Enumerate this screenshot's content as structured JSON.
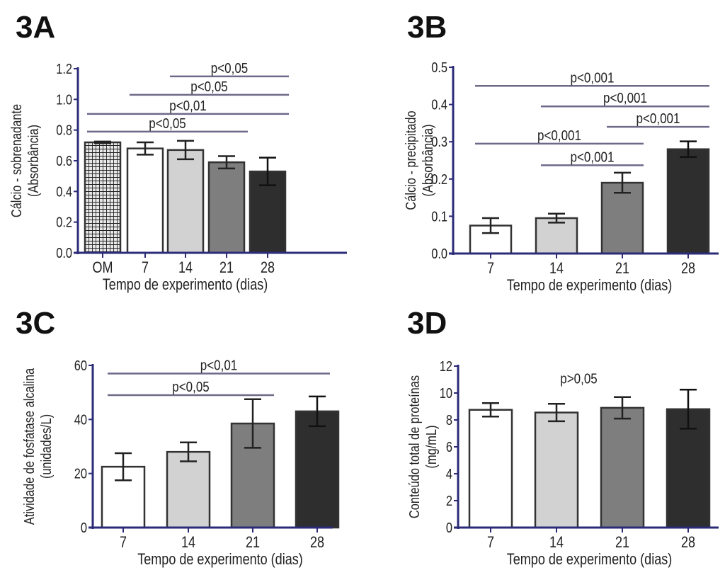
{
  "colors": {
    "axis": "#2b2b78",
    "sig_line": "#6c6a88",
    "bar_fills": [
      "#ffffff",
      "#d2d2d2",
      "#7e7e7e",
      "#2e2e2e"
    ],
    "om_fill": "checkered"
  },
  "chart_data": [
    {
      "panel": "3A",
      "type": "bar",
      "ylabel": [
        "Cálcio - sobrenadante",
        "(Absorbância)"
      ],
      "xlabel": "Tempo de experimento (dias)",
      "categories": [
        "OM",
        "7",
        "14",
        "21",
        "28"
      ],
      "values": [
        0.72,
        0.68,
        0.67,
        0.59,
        0.53
      ],
      "errors": [
        0.005,
        0.04,
        0.06,
        0.04,
        0.09
      ],
      "ylim": [
        0,
        1.2
      ],
      "yticks": [
        "0.0",
        "0.2",
        "0.4",
        "0.6",
        "0.8",
        "1.0",
        "1.2"
      ],
      "significance": [
        {
          "from": "OM",
          "to": "21",
          "y": 0.79,
          "label": "p<0,05"
        },
        {
          "from": "OM",
          "to": "28",
          "y": 0.905,
          "label": "p<0,01"
        },
        {
          "from": "7",
          "to": "28",
          "y": 1.03,
          "label": "p<0,05"
        },
        {
          "from": "14",
          "to": "28",
          "y": 1.15,
          "label": "p<0,05"
        }
      ]
    },
    {
      "panel": "3B",
      "type": "bar",
      "ylabel": [
        "Cálcio - precipitado",
        "(Absorbância)"
      ],
      "xlabel": "Tempo de experimento (dias)",
      "categories": [
        "7",
        "14",
        "21",
        "28"
      ],
      "values": [
        0.075,
        0.095,
        0.19,
        0.28
      ],
      "errors": [
        0.02,
        0.012,
        0.027,
        0.021
      ],
      "ylim": [
        0,
        0.5
      ],
      "yticks": [
        "0.0",
        "0.1",
        "0.2",
        "0.3",
        "0.4",
        "0.5"
      ],
      "significance": [
        {
          "from": "14",
          "to": "21",
          "y": 0.237,
          "label": "p<0,001"
        },
        {
          "from": "7",
          "to": "21",
          "y": 0.295,
          "label": "p<0,001"
        },
        {
          "from": "21",
          "to": "28",
          "y": 0.34,
          "label": "p<0,001"
        },
        {
          "from": "14",
          "to": "28",
          "y": 0.395,
          "label": "p<0,001"
        },
        {
          "from": "7",
          "to": "28",
          "y": 0.45,
          "label": "p<0,001"
        }
      ]
    },
    {
      "panel": "3C",
      "type": "bar",
      "ylabel": [
        "Atividade de fosfatase alcalina",
        "(unidades/L)"
      ],
      "xlabel": "Tempo de experimento (dias)",
      "categories": [
        "7",
        "14",
        "21",
        "28"
      ],
      "values": [
        22.5,
        28,
        38.5,
        43
      ],
      "errors": [
        5,
        3.5,
        9,
        5.5
      ],
      "ylim": [
        0,
        60
      ],
      "yticks": [
        "0",
        "20",
        "40",
        "60"
      ],
      "significance": [
        {
          "from": "7",
          "to": "21",
          "y": 49,
          "label": "p<0,05"
        },
        {
          "from": "7",
          "to": "28",
          "y": 57,
          "label": "p<0,01"
        }
      ]
    },
    {
      "panel": "3D",
      "type": "bar",
      "ylabel": [
        "Conteúdo total de proteínas",
        "(mg/mL)"
      ],
      "xlabel": "Tempo de experimento (dias)",
      "categories": [
        "7",
        "14",
        "21",
        "28"
      ],
      "values": [
        8.75,
        8.55,
        8.9,
        8.8
      ],
      "errors": [
        0.5,
        0.65,
        0.8,
        1.45
      ],
      "ylim": [
        0,
        12
      ],
      "yticks": [
        "0",
        "2",
        "4",
        "6",
        "8",
        "10",
        "12"
      ],
      "annotation": "p>0,05"
    }
  ]
}
